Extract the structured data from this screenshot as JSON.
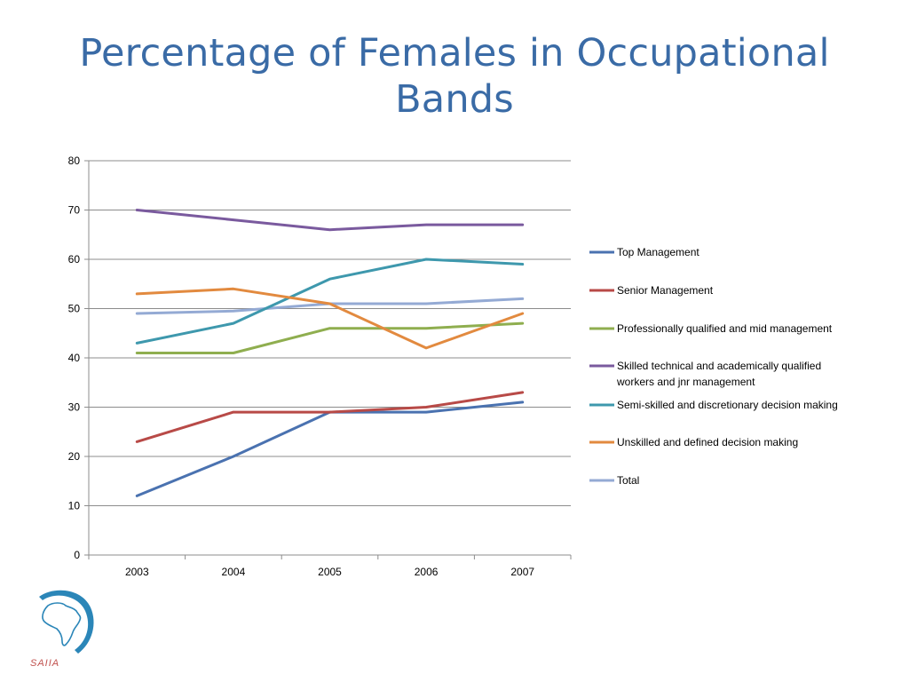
{
  "slide": {
    "title_line1": "Percentage of Females in Occupational",
    "title_line2": "Bands",
    "logo_text": "SAIIA"
  },
  "chart_data": {
    "type": "line",
    "title": "Percentage of Females in Occupational Bands",
    "xlabel": "",
    "ylabel": "",
    "categories": [
      "2003",
      "2004",
      "2005",
      "2006",
      "2007"
    ],
    "ylim": [
      0,
      80
    ],
    "yticks": [
      0,
      10,
      20,
      30,
      40,
      50,
      60,
      70,
      80
    ],
    "grid": true,
    "legend_position": "right",
    "series": [
      {
        "name": "Top Management",
        "color": "#4a72b0",
        "values": [
          12,
          20,
          29,
          29,
          31
        ]
      },
      {
        "name": "Senior Management",
        "color": "#b84a47",
        "values": [
          23,
          29,
          29,
          30,
          33
        ]
      },
      {
        "name": "Professionally qualified and mid management",
        "color": "#8fae4f",
        "values": [
          41,
          41,
          46,
          46,
          47
        ]
      },
      {
        "name": "Skilled technical and academically qualified workers and jnr management",
        "color": "#7a5a9e",
        "values": [
          70,
          68,
          66,
          67,
          67
        ]
      },
      {
        "name": "Semi-skilled and discretionary decision making",
        "color": "#3e98ad",
        "values": [
          43,
          47,
          56,
          60,
          59
        ]
      },
      {
        "name": "Unskilled and defined decision making",
        "color": "#e28a3f",
        "values": [
          53,
          54,
          51,
          42,
          49
        ]
      },
      {
        "name": "Total",
        "color": "#94aad4",
        "values": [
          49,
          49.5,
          51,
          51,
          52
        ]
      }
    ]
  }
}
